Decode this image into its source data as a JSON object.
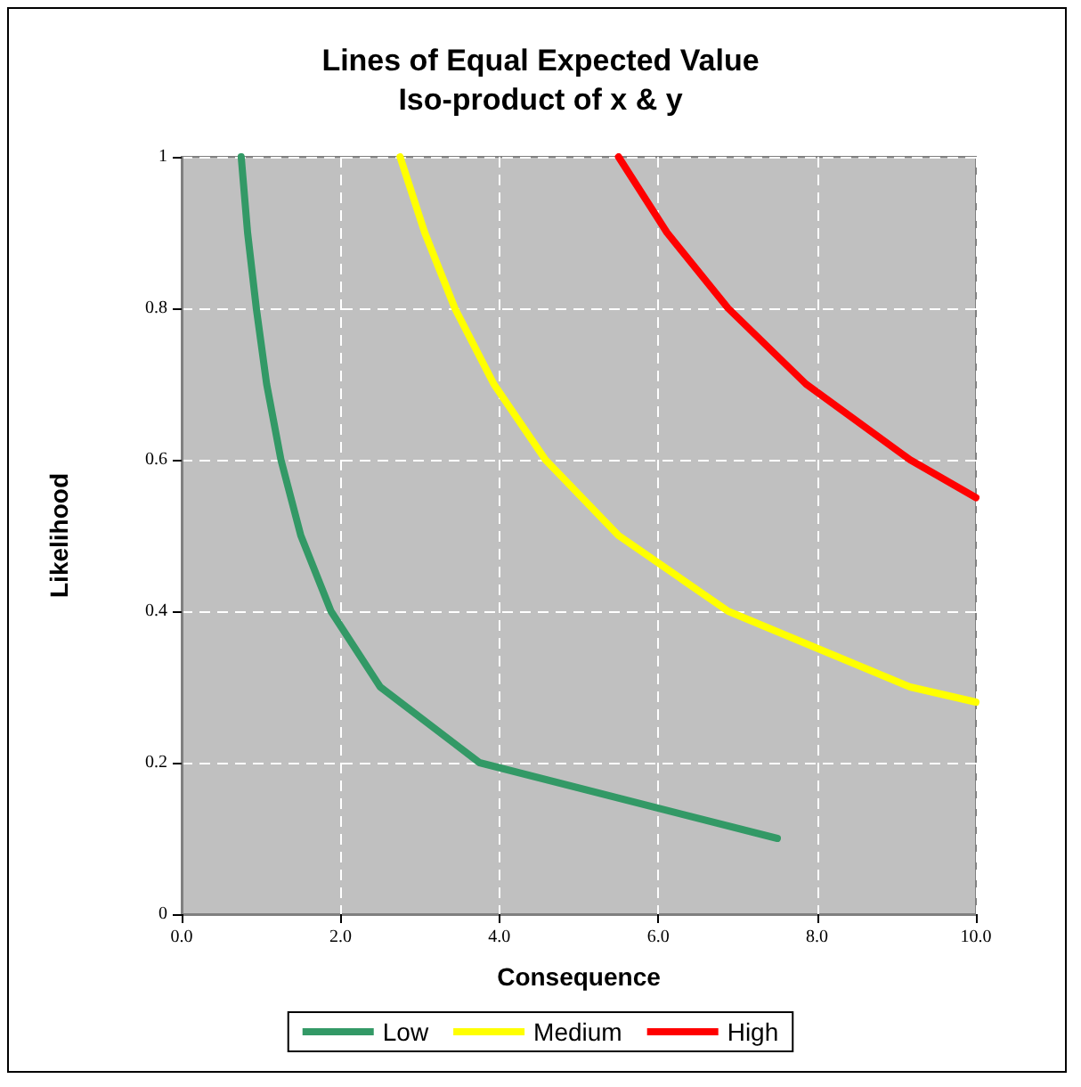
{
  "chart_data": {
    "type": "line",
    "title": "Lines of Equal Expected Value",
    "subtitle": "Iso-product of x & y",
    "xlabel": "Consequence",
    "ylabel": "Likelihood",
    "xlim": [
      0,
      10
    ],
    "xticks": [
      {
        "value": 0,
        "label": "0.0"
      },
      {
        "value": 2,
        "label": "2.0"
      },
      {
        "value": 4,
        "label": "4.0"
      },
      {
        "value": 6,
        "label": "6.0"
      },
      {
        "value": 8,
        "label": "8.0"
      },
      {
        "value": 10,
        "label": "10.0"
      }
    ],
    "ylim": [
      0,
      1
    ],
    "yticks": [
      0,
      0.2,
      0.4,
      0.6,
      0.8,
      1
    ],
    "grid": true,
    "legend": "bottom",
    "marker": "none",
    "line_style": "solid",
    "series": [
      {
        "name": "Low",
        "color": "#339966",
        "x": [
          0.75,
          0.83,
          0.94,
          1.07,
          1.25,
          1.5,
          1.88,
          2.5,
          3.75,
          7.5
        ],
        "values": [
          1,
          0.9,
          0.8,
          0.7,
          0.6,
          0.5,
          0.4,
          0.3,
          0.2,
          0.1
        ]
      },
      {
        "name": "Medium",
        "color": "#ffff00",
        "x": [
          2.75,
          3.06,
          3.44,
          3.93,
          4.58,
          5.5,
          6.88,
          9.17,
          10
        ],
        "values": [
          1,
          0.9,
          0.8,
          0.7,
          0.6,
          0.5,
          0.4,
          0.3,
          0.28
        ]
      },
      {
        "name": "High",
        "color": "#ff0000",
        "x": [
          5.5,
          6.11,
          6.88,
          7.86,
          9.17,
          10
        ],
        "values": [
          1,
          0.9,
          0.8,
          0.7,
          0.6,
          0.55
        ]
      }
    ]
  }
}
